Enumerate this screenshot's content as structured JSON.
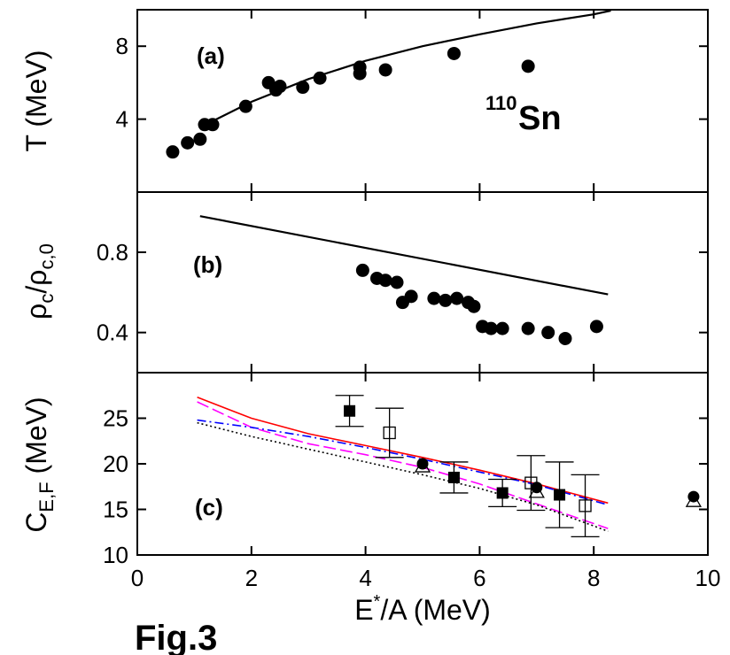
{
  "figure": {
    "caption": "Fig.3",
    "xlabel_main": "E",
    "xlabel_sup": "*",
    "xlabel_rest": "/A (MeV)",
    "x_ticks": [
      "0",
      "2",
      "4",
      "6",
      "8",
      "10"
    ]
  },
  "chart_data": [
    {
      "type": "scatter",
      "panel_label": "(a)",
      "ylabel": "T (MeV)",
      "annotation": {
        "sup": "110",
        "text": "Sn"
      },
      "xlim": [
        0,
        10
      ],
      "ylim": [
        0,
        10
      ],
      "y_ticks": [
        4,
        8
      ],
      "y_tick_labels": [
        "4",
        "8"
      ],
      "series": [
        {
          "type": "line",
          "x": [
            1.1,
            2.0,
            3.0,
            4.0,
            5.0,
            6.0,
            7.0,
            8.0,
            8.3
          ],
          "y": [
            3.55,
            4.95,
            6.2,
            7.2,
            8.0,
            8.65,
            9.25,
            9.75,
            9.95
          ]
        },
        {
          "type": "scatter",
          "x": [
            0.62,
            0.88,
            1.1,
            1.18,
            1.32,
            1.9,
            2.3,
            2.43,
            2.5,
            2.9,
            3.2,
            3.9,
            3.9,
            4.35,
            5.55,
            6.85
          ],
          "y": [
            2.2,
            2.7,
            2.9,
            3.7,
            3.7,
            4.7,
            6.0,
            5.6,
            5.8,
            5.75,
            6.25,
            6.5,
            6.85,
            6.7,
            7.6,
            6.9
          ]
        }
      ]
    },
    {
      "type": "scatter",
      "panel_label": "(b)",
      "ylabel": "ρ_c/ρ_c,0",
      "ylabel_main": "ρ",
      "ylabel_sub1": "c",
      "ylabel_mid": "/ρ",
      "ylabel_sub2": "c,0",
      "xlim": [
        0,
        10
      ],
      "ylim": [
        0.2,
        1.1
      ],
      "y_ticks": [
        0.4,
        0.8
      ],
      "y_tick_labels": [
        "0.4",
        "0.8"
      ],
      "series": [
        {
          "type": "line",
          "x": [
            1.1,
            8.25
          ],
          "y": [
            0.98,
            0.59
          ]
        },
        {
          "type": "scatter",
          "x": [
            3.95,
            4.2,
            4.35,
            4.55,
            4.65,
            4.8,
            5.2,
            5.6,
            5.4,
            5.8,
            5.9,
            6.05,
            6.2,
            6.4,
            6.85,
            7.2,
            7.5,
            8.05
          ],
          "y": [
            0.71,
            0.67,
            0.66,
            0.65,
            0.55,
            0.58,
            0.57,
            0.57,
            0.56,
            0.55,
            0.53,
            0.43,
            0.42,
            0.42,
            0.42,
            0.4,
            0.37,
            0.43
          ]
        }
      ]
    },
    {
      "type": "scatter",
      "panel_label": "(c)",
      "ylabel": "C_E,F (MeV)",
      "ylabel_main": "C",
      "ylabel_sub": "E,F",
      "ylabel_rest": " (MeV)",
      "xlim": [
        0,
        10
      ],
      "ylim": [
        10,
        30
      ],
      "y_ticks": [
        10,
        15,
        20,
        25
      ],
      "y_tick_labels": [
        "10",
        "15",
        "20",
        "25"
      ],
      "series": [
        {
          "type": "line",
          "color": "#ff0000",
          "dash": "solid",
          "x": [
            1.05,
            2.0,
            3.0,
            4.0,
            5.0,
            6.0,
            7.0,
            8.25
          ],
          "y": [
            27.3,
            25.0,
            23.3,
            22.0,
            20.7,
            19.3,
            17.8,
            15.7
          ]
        },
        {
          "type": "line",
          "color": "#ff00ff",
          "dash": "long-dash",
          "x": [
            1.05,
            2.0,
            3.0,
            4.0,
            5.0,
            6.0,
            7.0,
            8.25
          ],
          "y": [
            26.8,
            24.0,
            22.2,
            21.0,
            19.6,
            17.8,
            15.6,
            12.9
          ]
        },
        {
          "type": "line",
          "color": "#0000ff",
          "dash": "dash-dot",
          "x": [
            1.05,
            2.0,
            3.0,
            4.0,
            5.0,
            6.0,
            7.0,
            8.25
          ],
          "y": [
            24.8,
            24.0,
            23.0,
            21.8,
            20.5,
            19.1,
            17.7,
            15.5
          ]
        },
        {
          "type": "line",
          "color": "#000000",
          "dash": "dotted",
          "x": [
            1.05,
            2.0,
            3.0,
            4.0,
            5.0,
            6.0,
            7.0,
            8.25
          ],
          "y": [
            24.5,
            23.0,
            21.6,
            20.2,
            18.8,
            17.3,
            15.5,
            12.6
          ]
        },
        {
          "type": "filled-square",
          "x": [
            3.72,
            5.55,
            6.4,
            7.4
          ],
          "y": [
            25.8,
            18.5,
            16.8,
            16.6
          ],
          "err": [
            1.7,
            1.7,
            1.5,
            3.6
          ]
        },
        {
          "type": "open-square",
          "x": [
            4.42,
            6.9,
            7.85
          ],
          "y": [
            23.4,
            17.9,
            15.4
          ],
          "err": [
            2.7,
            3.0,
            3.4
          ]
        },
        {
          "type": "filled-circle",
          "x": [
            5.0,
            7.0,
            9.75
          ],
          "y": [
            20.0,
            17.4,
            16.4
          ]
        },
        {
          "type": "open-triangle",
          "x": [
            5.0,
            7.0,
            9.75
          ],
          "y": [
            19.8,
            17.0,
            16.0
          ]
        }
      ]
    }
  ]
}
